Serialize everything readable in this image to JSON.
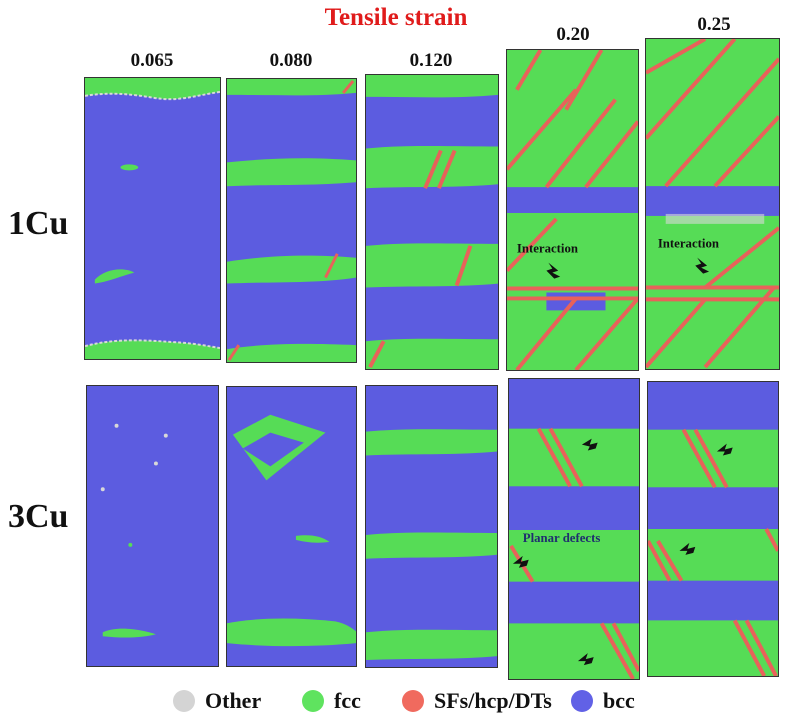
{
  "figure": {
    "title": "Tensile strain",
    "strains": [
      "0.065",
      "0.080",
      "0.120",
      "0.20",
      "0.25"
    ],
    "rows": [
      "1Cu",
      "3Cu"
    ],
    "annotations": {
      "interaction": "Interaction",
      "planar_defects": "Planar defects"
    }
  },
  "legend": [
    {
      "label": "Other",
      "color": "#d4d4d4"
    },
    {
      "label": "fcc",
      "color": "#5fe35f"
    },
    {
      "label": "SFs/hcp/DTs",
      "color": "#f06a5e"
    },
    {
      "label": "bcc",
      "color": "#6161e6"
    }
  ],
  "colors": {
    "bcc": "#5c5ce0",
    "fcc": "#56dc56",
    "sf": "#e8625a",
    "other": "#d8d8d8",
    "title": "#e01b1b"
  }
}
